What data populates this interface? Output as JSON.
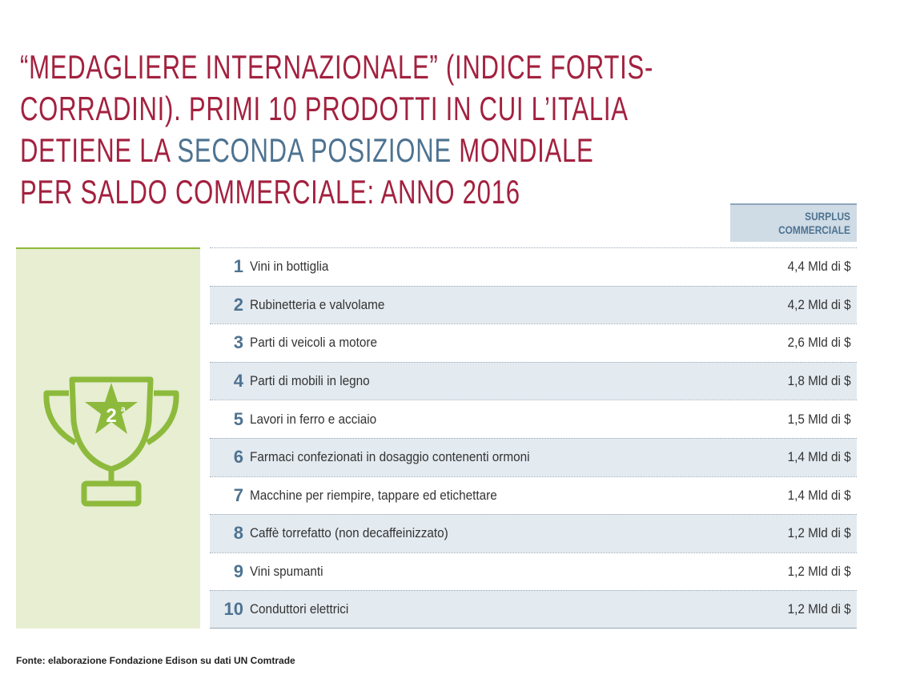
{
  "title": {
    "line1": "“MEDAGLIERE INTERNAZIONALE” (INDICE FORTIS-",
    "line2": "CORRADINI). PRIMI 10 PRODOTTI IN CUI L’ITALIA",
    "line3_start": "DETIENE LA",
    "highlight": "SECONDA POSIZIONE",
    "line3_end": "MONDIALE",
    "line4": "PER SALDO COMMERCIALE: ANNO 2016"
  },
  "badge": {
    "number": "2",
    "suffix": "a"
  },
  "table": {
    "header": "SURPLUS COMMERCIALE",
    "rows": [
      [
        1,
        "Vini in bottiglia",
        "4,4 Mld di $"
      ],
      [
        2,
        "Rubinetteria e valvolame",
        "4,2 Mld di $"
      ],
      [
        3,
        "Parti di veicoli a motore",
        "2,6 Mld di $"
      ],
      [
        4,
        "Parti di mobili in legno",
        "1,8 Mld di $"
      ],
      [
        5,
        "Lavori in ferro e acciaio",
        "1,5 Mld di $"
      ],
      [
        6,
        "Farmaci confezionati in dosaggio contenenti ormoni",
        "1,4 Mld di $"
      ],
      [
        7,
        "Macchine per riempire, tappare ed etichettare",
        "1,4 Mld di $"
      ],
      [
        8,
        "Caffè torrefatto (non decaffeinizzato)",
        "1,2 Mld di $"
      ],
      [
        9,
        "Vini spumanti",
        "1,2 Mld di $"
      ],
      [
        10,
        "Conduttori elettrici",
        "1,2 Mld di $"
      ]
    ]
  },
  "source": "Fonte: elaborazione Fondazione Edison su dati UN Comtrade"
}
